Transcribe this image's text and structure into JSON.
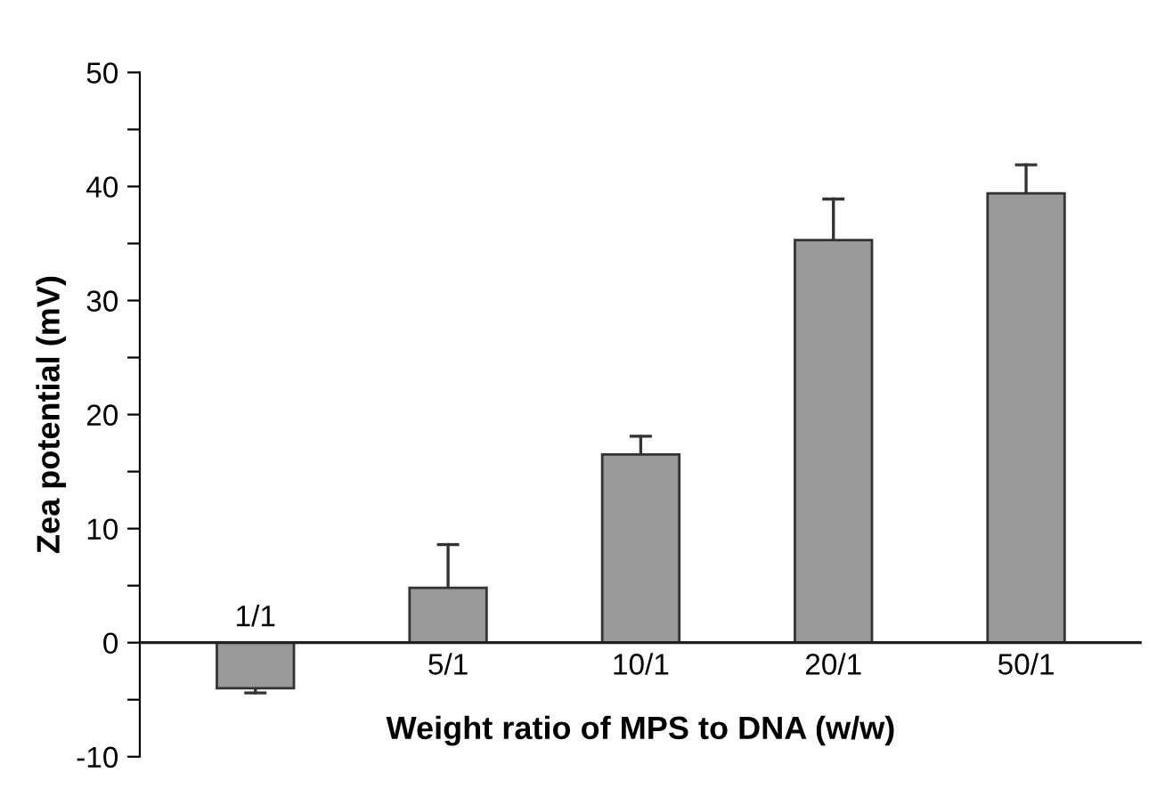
{
  "chart_data": {
    "type": "bar",
    "xlabel": "Weight ratio of MPS to DNA (w/w)",
    "ylabel": "Zea potential (mV)",
    "categories": [
      "1/1",
      "5/1",
      "10/1",
      "20/1",
      "50/1"
    ],
    "series": [
      {
        "color": "#999999",
        "values": [
          -4.0,
          4.8,
          16.5,
          35.3,
          39.4
        ],
        "errors": [
          [
            -4.4,
            -4.0
          ],
          [
            4.8,
            8.6
          ],
          [
            16.5,
            18.1
          ],
          [
            35.3,
            38.9
          ],
          [
            39.4,
            41.9
          ]
        ]
      }
    ],
    "ylim": [
      -10,
      50
    ],
    "yticks": [
      -10,
      {
        "value": -5,
        "label": null
      },
      0,
      {
        "value": 5,
        "label": null
      },
      10,
      {
        "value": 15,
        "label": null
      },
      20,
      {
        "value": 25,
        "label": null
      },
      30,
      {
        "value": 35,
        "label": null
      },
      40,
      {
        "value": 45,
        "label": null
      },
      50
    ],
    "grid": false,
    "legend": false
  }
}
